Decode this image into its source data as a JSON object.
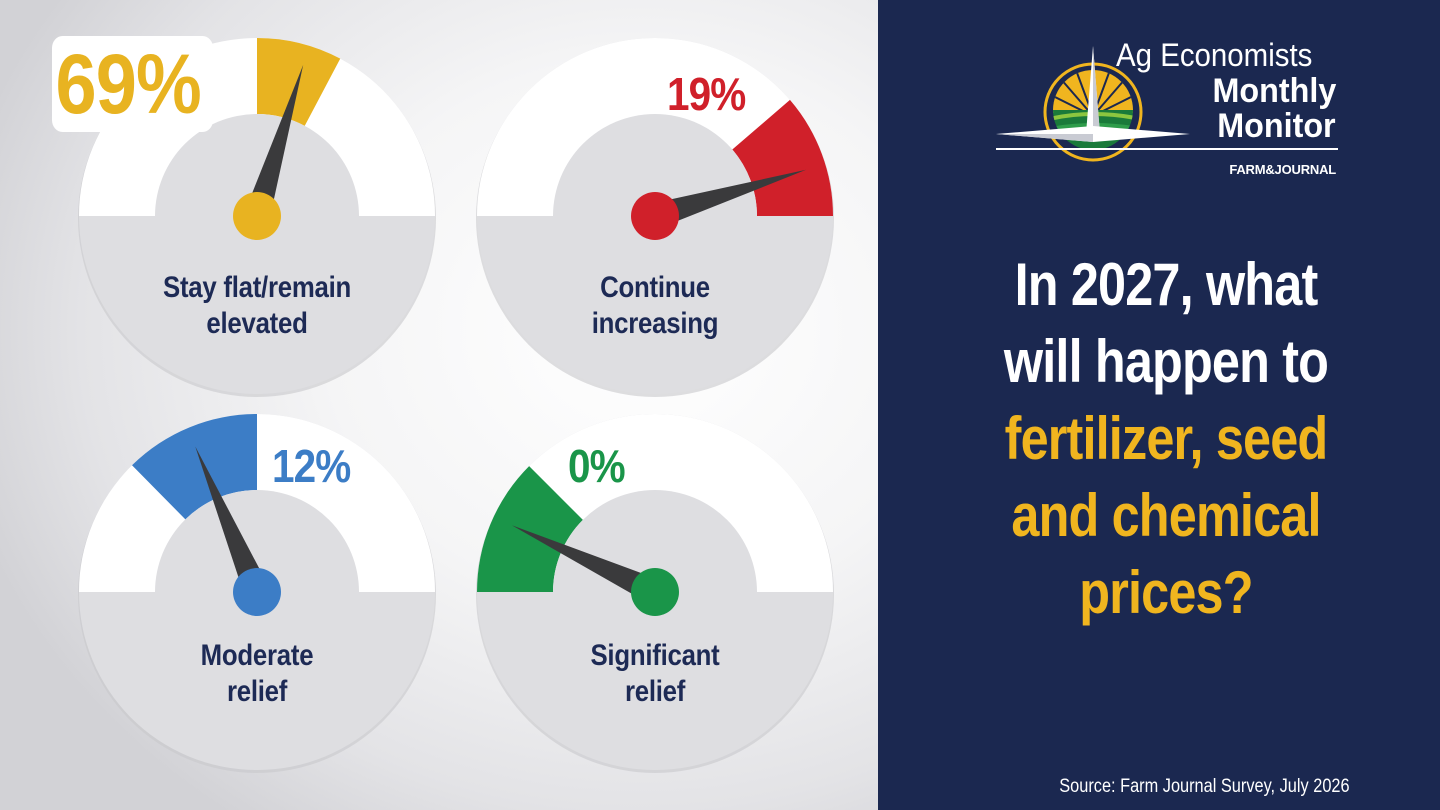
{
  "header": {
    "title_line1": "Ag Economists",
    "title_line2": "Monthly",
    "title_line3": "Monitor",
    "publisher": "FARM&JOURNAL"
  },
  "question": {
    "line1": "In 2027, what",
    "line2": "will happen to",
    "line3": "fertilizer, seed",
    "line4": "and chemical",
    "line5": "prices?"
  },
  "source": "Source: Farm Journal Survey, July 2026",
  "colors": {
    "navy": "#1b2850",
    "label_navy": "#1d2a55",
    "yellow": "#e8b321",
    "red": "#d0202a",
    "blue": "#3c7dc6",
    "green": "#1a9549",
    "needle": "#3a3a3c",
    "dial_gray": "#dedee1"
  },
  "chart_data": {
    "type": "gauge",
    "gauges": [
      {
        "label_line1": "Stay flat/remain",
        "label_line2": "elevated",
        "value": 69,
        "value_label": "69%",
        "color": "#e8b321"
      },
      {
        "label_line1": "Continue",
        "label_line2": "increasing",
        "value": 19,
        "value_label": "19%",
        "color": "#d0202a"
      },
      {
        "label_line1": "Moderate",
        "label_line2": "relief",
        "value": 12,
        "value_label": "12%",
        "color": "#3c7dc6"
      },
      {
        "label_line1": "Significant",
        "label_line2": "relief",
        "value": 0,
        "value_label": "0%",
        "color": "#1a9549"
      }
    ]
  }
}
